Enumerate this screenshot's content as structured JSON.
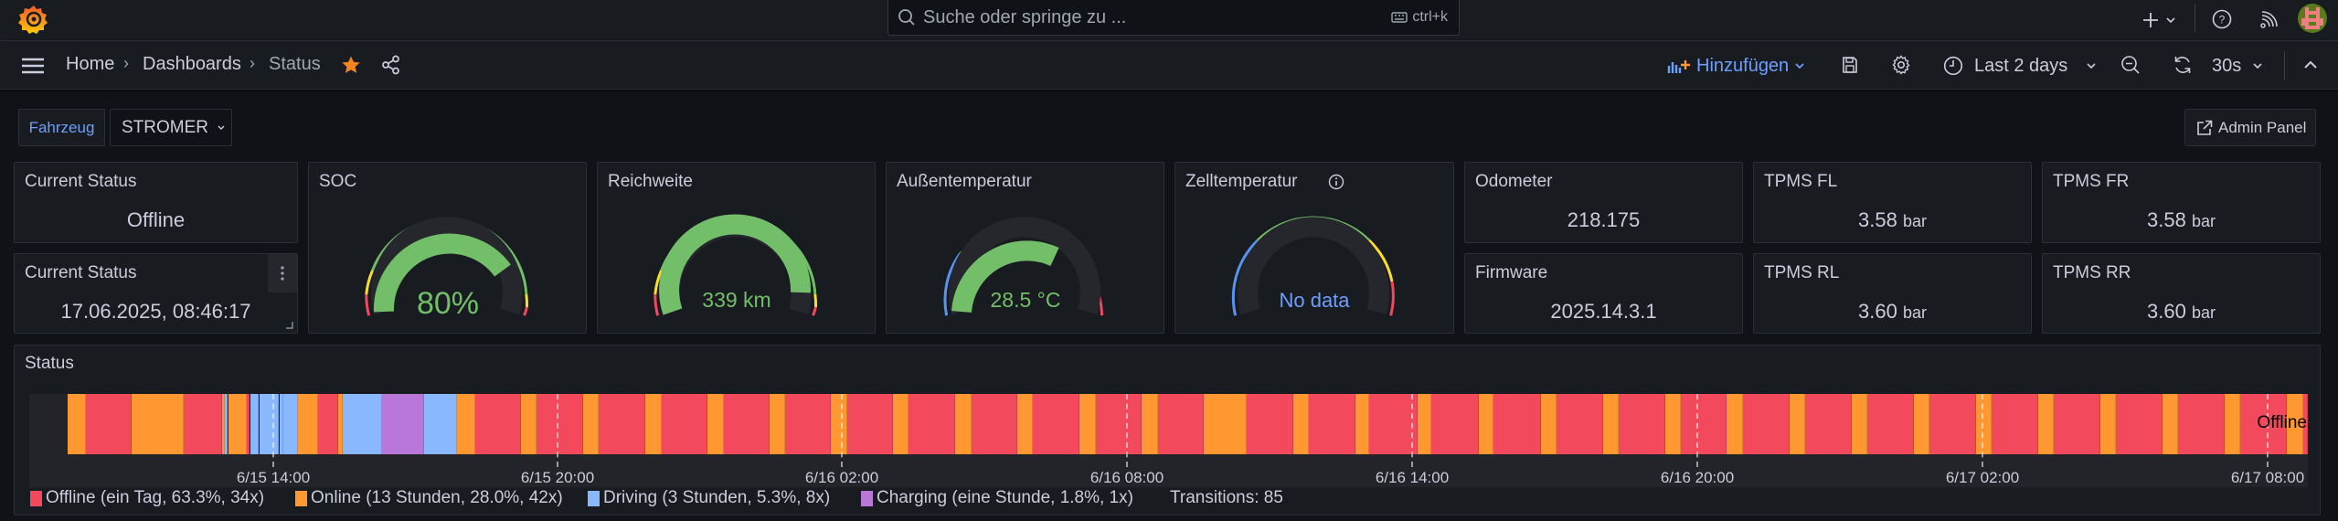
{
  "topbar": {
    "search_placeholder": "Suche oder springe zu ...",
    "search_shortcut": "ctrl+k"
  },
  "breadcrumb": {
    "items": [
      "Home",
      "Dashboards",
      "Status"
    ],
    "separator": "›"
  },
  "toolbar": {
    "add_label": "Hinzufügen",
    "time_range": "Last 2 days",
    "refresh_interval": "30s"
  },
  "variables": {
    "label": "Fahrzeug",
    "value": "STROMER"
  },
  "admin_button": "Admin Panel",
  "panels": {
    "current_status": {
      "title": "Current Status",
      "value": "Offline"
    },
    "current_status_time": {
      "title": "Current Status",
      "value": "17.06.2025, 08:46:17"
    },
    "soc": {
      "title": "SOC",
      "value": "80%",
      "percent": 80
    },
    "range": {
      "title": "Reichweite",
      "value": "339 km",
      "percent": 87
    },
    "outside_temp": {
      "title": "Außentemperatur",
      "value": "28.5 °C",
      "percent": 67
    },
    "cell_temp": {
      "title": "Zelltemperatur",
      "value": "No data"
    },
    "odometer": {
      "title": "Odometer",
      "value": "218.175"
    },
    "firmware": {
      "title": "Firmware",
      "value": "2025.14.3.1"
    },
    "tpms_fl": {
      "title": "TPMS FL",
      "value": "3.58",
      "unit": "bar"
    },
    "tpms_fr": {
      "title": "TPMS FR",
      "value": "3.58",
      "unit": "bar"
    },
    "tpms_rl": {
      "title": "TPMS RL",
      "value": "3.60",
      "unit": "bar"
    },
    "tpms_rr": {
      "title": "TPMS RR",
      "value": "3.60",
      "unit": "bar"
    }
  },
  "status_timeline": {
    "title": "Status",
    "current_label": "Offline",
    "ticks": [
      "6/15 14:00",
      "6/15 20:00",
      "6/16 02:00",
      "6/16 08:00",
      "6/16 14:00",
      "6/16 20:00",
      "6/17 02:00",
      "6/17 08:00"
    ],
    "legend": [
      {
        "label": "Offline (ein Tag, 63.3%, 34x)",
        "color": "#f2495c"
      },
      {
        "label": "Online (13 Stunden, 28.0%, 42x)",
        "color": "#ff9830"
      },
      {
        "label": "Driving (3 Stunden, 5.3%, 8x)",
        "color": "#8ab8ff"
      },
      {
        "label": "Charging (eine Stunde, 1.8%, 1x)",
        "color": "#b877d9"
      }
    ],
    "transitions": "Transitions: 85"
  },
  "colors": {
    "offline": "#f2495c",
    "online": "#ff9830",
    "driving": "#8ab8ff",
    "charging": "#b877d9",
    "gauge_green": "#73bf69",
    "accent_blue": "#6e9fff"
  }
}
